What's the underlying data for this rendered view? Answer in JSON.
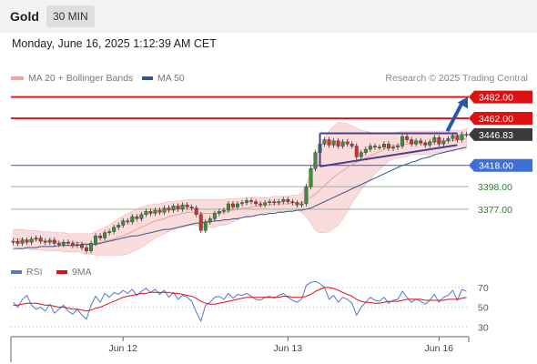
{
  "header": {
    "symbol": "Gold",
    "timeframe": "30 MIN"
  },
  "datetime": "Monday, June 16, 2025 1:12:39 AM CET",
  "legend": [
    {
      "label": "MA 20 + Bollinger Bands",
      "color": "#f4a3a3"
    },
    {
      "label": "MA 50",
      "color": "#34568b"
    }
  ],
  "credit": "Research © 2025 Trading Central",
  "rsi_legend": [
    {
      "label": "RSI",
      "color": "#5577cc"
    },
    {
      "label": "9MA",
      "color": "#dd1111"
    }
  ],
  "colors": {
    "resistance": "#dd1111",
    "pivot": "#3d6fd6",
    "support": "#8fbc8f",
    "support_text": "#2e7d32",
    "last_price_bg": "#3b3b3b",
    "bollinger_fill": "#f9d0d0",
    "ma20": "#e8a0a0",
    "ma50": "#34568b",
    "triangle": "#4a3f8f",
    "arrow": "#2459a8"
  },
  "chart_data": [
    {
      "type": "line",
      "title": "Gold",
      "subtitle": "30 MIN",
      "ylim": [
        3330,
        3491
      ],
      "y_unit": "price",
      "x_tick_labels": [
        "Jun 12",
        "Jun 13",
        "Jun 16"
      ],
      "x_tick_index": [
        24,
        60,
        93
      ],
      "n_bars": 100,
      "close": [
        3347,
        3345,
        3348,
        3346,
        3349,
        3350,
        3347,
        3346,
        3348,
        3345,
        3344,
        3346,
        3345,
        3343,
        3344,
        3341,
        3338,
        3345,
        3352,
        3350,
        3355,
        3356,
        3360,
        3362,
        3366,
        3365,
        3370,
        3368,
        3372,
        3375,
        3373,
        3376,
        3374,
        3378,
        3376,
        3380,
        3377,
        3381,
        3379,
        3378,
        3372,
        3357,
        3365,
        3368,
        3373,
        3375,
        3376,
        3382,
        3379,
        3382,
        3383,
        3385,
        3384,
        3382,
        3381,
        3383,
        3384,
        3383,
        3384,
        3386,
        3384,
        3383,
        3381,
        3382,
        3398,
        3415,
        3430,
        3438,
        3442,
        3437,
        3441,
        3436,
        3440,
        3438,
        3436,
        3426,
        3430,
        3433,
        3436,
        3435,
        3435,
        3438,
        3434,
        3435,
        3436,
        3445,
        3442,
        3438,
        3441,
        3439,
        3437,
        3440,
        3444,
        3438,
        3441,
        3443,
        3446,
        3442,
        3447,
        3446.83
      ],
      "ma20": [
        3350,
        3349,
        3349,
        3348,
        3348,
        3348,
        3348,
        3347,
        3347,
        3347,
        3346,
        3346,
        3346,
        3346,
        3346,
        3345,
        3345,
        3345,
        3345,
        3346,
        3347,
        3348,
        3349,
        3351,
        3352,
        3354,
        3356,
        3358,
        3360,
        3362,
        3364,
        3366,
        3367,
        3368,
        3370,
        3371,
        3372,
        3373,
        3374,
        3374,
        3374,
        3373,
        3373,
        3373,
        3373,
        3374,
        3374,
        3375,
        3376,
        3377,
        3378,
        3378,
        3379,
        3380,
        3380,
        3381,
        3381,
        3382,
        3382,
        3382,
        3382,
        3383,
        3383,
        3383,
        3385,
        3388,
        3391,
        3395,
        3399,
        3403,
        3407,
        3410,
        3413,
        3416,
        3419,
        3421,
        3423,
        3425,
        3427,
        3429,
        3431,
        3433,
        3435,
        3436,
        3437,
        3438,
        3438,
        3439,
        3439,
        3439,
        3439,
        3439,
        3440,
        3440,
        3440,
        3441,
        3441,
        3442,
        3442,
        3443
      ],
      "bb_upper": [
        3358,
        3358,
        3358,
        3357,
        3357,
        3357,
        3356,
        3356,
        3356,
        3355,
        3355,
        3355,
        3354,
        3354,
        3354,
        3354,
        3354,
        3354,
        3356,
        3358,
        3360,
        3362,
        3365,
        3368,
        3371,
        3373,
        3375,
        3377,
        3379,
        3380,
        3381,
        3382,
        3382,
        3383,
        3384,
        3384,
        3385,
        3385,
        3386,
        3386,
        3386,
        3386,
        3386,
        3386,
        3386,
        3386,
        3386,
        3387,
        3387,
        3387,
        3387,
        3388,
        3388,
        3388,
        3388,
        3388,
        3388,
        3389,
        3389,
        3389,
        3389,
        3390,
        3390,
        3392,
        3400,
        3412,
        3425,
        3435,
        3443,
        3450,
        3455,
        3458,
        3458,
        3457,
        3455,
        3453,
        3451,
        3450,
        3449,
        3448,
        3448,
        3448,
        3448,
        3448,
        3449,
        3450,
        3450,
        3450,
        3450,
        3450,
        3450,
        3450,
        3450,
        3450,
        3450,
        3450,
        3451,
        3451,
        3451,
        3452
      ],
      "bb_lower": [
        3342,
        3341,
        3340,
        3340,
        3339,
        3339,
        3339,
        3338,
        3338,
        3338,
        3338,
        3337,
        3337,
        3337,
        3337,
        3336,
        3335,
        3335,
        3334,
        3334,
        3334,
        3334,
        3334,
        3334,
        3334,
        3335,
        3337,
        3339,
        3341,
        3344,
        3347,
        3350,
        3352,
        3354,
        3356,
        3358,
        3359,
        3360,
        3361,
        3362,
        3362,
        3360,
        3360,
        3360,
        3360,
        3362,
        3362,
        3363,
        3365,
        3367,
        3369,
        3369,
        3370,
        3372,
        3372,
        3374,
        3374,
        3375,
        3375,
        3375,
        3375,
        3376,
        3376,
        3374,
        3370,
        3364,
        3357,
        3355,
        3355,
        3356,
        3359,
        3362,
        3368,
        3375,
        3383,
        3389,
        3395,
        3400,
        3405,
        3410,
        3414,
        3418,
        3422,
        3424,
        3425,
        3426,
        3426,
        3428,
        3428,
        3428,
        3428,
        3428,
        3430,
        3430,
        3430,
        3432,
        3431,
        3433,
        3433,
        3434
      ],
      "ma50": [
        3340,
        3340,
        3340,
        3341,
        3341,
        3341,
        3342,
        3342,
        3342,
        3342,
        3343,
        3343,
        3343,
        3343,
        3343,
        3344,
        3344,
        3344,
        3344,
        3345,
        3346,
        3347,
        3348,
        3349,
        3350,
        3351,
        3352,
        3352,
        3353,
        3354,
        3355,
        3356,
        3357,
        3358,
        3358,
        3359,
        3360,
        3361,
        3362,
        3363,
        3364,
        3364,
        3365,
        3365,
        3366,
        3366,
        3367,
        3367,
        3368,
        3368,
        3369,
        3370,
        3370,
        3371,
        3372,
        3372,
        3373,
        3373,
        3374,
        3374,
        3375,
        3375,
        3376,
        3376,
        3377,
        3378,
        3380,
        3382,
        3384,
        3386,
        3388,
        3390,
        3392,
        3394,
        3396,
        3398,
        3400,
        3402,
        3404,
        3406,
        3408,
        3410,
        3412,
        3414,
        3416,
        3418,
        3419,
        3421,
        3422,
        3424,
        3425,
        3426,
        3428,
        3429,
        3430,
        3431,
        3432,
        3433,
        3434,
        3435
      ],
      "levels": [
        {
          "value": 3482.0,
          "label": "3482.00",
          "kind": "resistance"
        },
        {
          "value": 3462.0,
          "label": "3462.00",
          "kind": "resistance"
        },
        {
          "value": 3446.83,
          "label": "3446.83",
          "kind": "last"
        },
        {
          "value": 3418.0,
          "label": "3418.00",
          "kind": "pivot"
        },
        {
          "value": 3398.0,
          "label": "3398.00",
          "kind": "support"
        },
        {
          "value": 3377.0,
          "label": "3377.00",
          "kind": "support"
        }
      ],
      "triangle": {
        "top": {
          "from_index": 67,
          "to_index": 97,
          "value": 3448
        },
        "bottom": {
          "from_index": 67,
          "from_value": 3417,
          "to_index": 97,
          "to_value": 3437
        }
      },
      "arrow": {
        "from_index": 98,
        "from_value": 3450,
        "to_value": 3482
      }
    },
    {
      "type": "line",
      "title": "RSI",
      "ylim": [
        22,
        80
      ],
      "y_ticks": [
        70,
        50,
        30
      ],
      "series": [
        {
          "name": "RSI",
          "values": [
            55,
            50,
            58,
            62,
            52,
            48,
            50,
            46,
            53,
            44,
            48,
            52,
            46,
            43,
            48,
            42,
            38,
            52,
            61,
            55,
            64,
            60,
            65,
            63,
            67,
            64,
            68,
            62,
            66,
            69,
            65,
            68,
            63,
            67,
            60,
            65,
            58,
            62,
            60,
            56,
            45,
            36,
            52,
            55,
            60,
            61,
            58,
            64,
            59,
            63,
            62,
            64,
            61,
            58,
            57,
            60,
            61,
            59,
            62,
            64,
            60,
            57,
            55,
            58,
            72,
            75,
            76,
            74,
            70,
            58,
            62,
            55,
            60,
            58,
            54,
            42,
            50,
            55,
            60,
            57,
            56,
            60,
            54,
            57,
            58,
            66,
            60,
            55,
            58,
            56,
            53,
            57,
            63,
            55,
            60,
            62,
            67,
            57,
            68,
            66
          ]
        },
        {
          "name": "9MA",
          "values": [
            52,
            52,
            53,
            54,
            54,
            54,
            53,
            52,
            52,
            51,
            50,
            50,
            49,
            48,
            48,
            47,
            46,
            47,
            49,
            50,
            52,
            54,
            56,
            58,
            60,
            61,
            62,
            63,
            64,
            64,
            65,
            65,
            65,
            65,
            65,
            64,
            64,
            63,
            62,
            61,
            59,
            56,
            54,
            53,
            53,
            54,
            55,
            56,
            57,
            58,
            59,
            60,
            60,
            60,
            60,
            60,
            60,
            60,
            60,
            61,
            61,
            60,
            60,
            60,
            61,
            63,
            66,
            68,
            70,
            70,
            69,
            67,
            65,
            63,
            61,
            58,
            56,
            55,
            55,
            54,
            54,
            55,
            56,
            56,
            56,
            57,
            58,
            58,
            58,
            58,
            57,
            57,
            57,
            57,
            57,
            58,
            58,
            58,
            59,
            60
          ]
        }
      ],
      "x_tick_labels": [
        "Jun 12",
        "Jun 13",
        "Jun 16"
      ]
    }
  ]
}
